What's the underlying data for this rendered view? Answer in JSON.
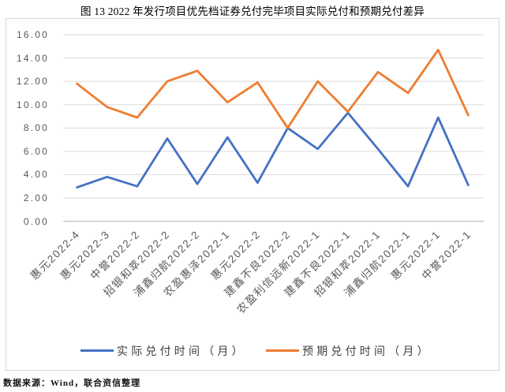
{
  "figure": {
    "title": "图 13  2022 年发行项目优先档证券兑付完毕项目实际兑付和预期兑付差异",
    "source_note": "数据来源：Wind，联合资信整理"
  },
  "chart_data": {
    "type": "line",
    "title": "图 13  2022 年发行项目优先档证券兑付完毕项目实际兑付和预期兑付差异",
    "categories": [
      "惠元2022-4",
      "惠元2022-3",
      "中誉2022-2",
      "招银和萃2022-2",
      "浦鑫归航2022-2",
      "农盈惠泽2022-1",
      "惠元2022-2",
      "建鑫不良2022-2",
      "农盈利信远新2022-1",
      "建鑫不良2022-1",
      "招银和萃2022-1",
      "浦鑫归航2022-1",
      "惠元2022-1",
      "中誉2022-1"
    ],
    "series": [
      {
        "name": "实际兑付时间（月）",
        "color": "#4472C4",
        "values": [
          2.9,
          3.8,
          3.0,
          7.1,
          3.2,
          7.2,
          3.3,
          8.0,
          6.2,
          9.3,
          6.2,
          3.0,
          8.9,
          3.1
        ]
      },
      {
        "name": "预期兑付时间（月）",
        "color": "#ED7D31",
        "values": [
          11.8,
          9.8,
          8.9,
          12.0,
          12.9,
          10.2,
          11.9,
          8.0,
          12.0,
          9.4,
          12.8,
          11.0,
          14.7,
          9.1
        ]
      }
    ],
    "xlabel": "",
    "ylabel": "",
    "ylim": [
      0,
      16
    ],
    "ytick_step": 2,
    "ytick_labels": [
      "0.00",
      "2.00",
      "4.00",
      "6.00",
      "8.00",
      "10.00",
      "12.00",
      "14.00",
      "16.00"
    ],
    "grid": true,
    "legend_position": "bottom",
    "gridline_color": "#d9d9d9",
    "axis_line_color": "#bfbfbf",
    "tick_label_color": "#595959"
  }
}
